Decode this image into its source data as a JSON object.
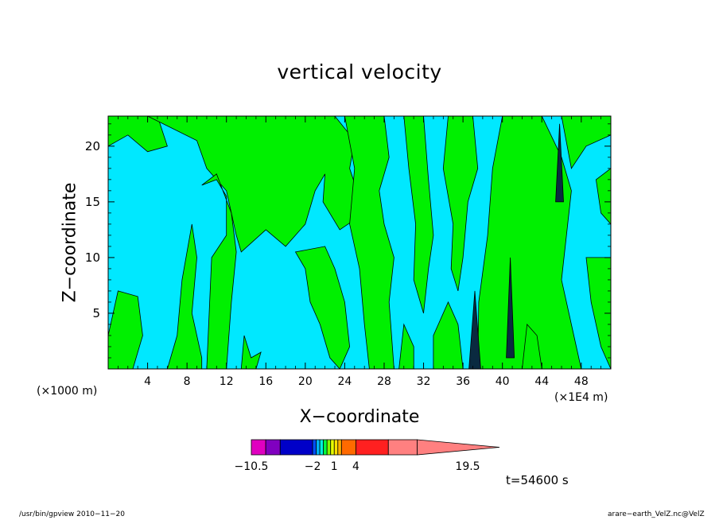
{
  "chart_data": {
    "type": "heatmap",
    "title": "vertical velocity",
    "xlabel": "X−coordinate",
    "ylabel": "Z−coordinate",
    "x_unit_left": "(×1000 m)",
    "x_unit_right": "(×1E4 m)",
    "x_ticks": [
      "4",
      "8",
      "12",
      "16",
      "20",
      "24",
      "28",
      "32",
      "36",
      "40",
      "44",
      "48"
    ],
    "x_tick_values": [
      4,
      8,
      12,
      16,
      20,
      24,
      28,
      32,
      36,
      40,
      44,
      48
    ],
    "xlim": [
      0,
      51
    ],
    "y_ticks": [
      "5",
      "10",
      "15",
      "20"
    ],
    "y_tick_values": [
      5,
      10,
      15,
      20
    ],
    "ylim": [
      0,
      22.7
    ],
    "colorbar": {
      "labels": [
        "−10.5",
        "−2",
        "1",
        "4",
        "19.5"
      ],
      "label_values": [
        -10.5,
        -2,
        1,
        4,
        19.5
      ],
      "levels": [
        -10.5,
        -8.5,
        -6.5,
        -2,
        -1.5,
        -1,
        -0.5,
        0,
        0.5,
        1,
        1.5,
        2,
        4,
        8.5,
        12.5,
        19.5
      ],
      "colors": [
        "#e000c0",
        "#8000c0",
        "#0000c8",
        "#0050ff",
        "#00b4ff",
        "#00f0e0",
        "#00ff40",
        "#80ff00",
        "#e8ff00",
        "#ffe000",
        "#ffb000",
        "#ff6a00",
        "#ff2020",
        "#ff8080",
        "#ffb4b4"
      ]
    },
    "field_colors": {
      "weak_negative": "#00e8ff",
      "weak_positive": "#00f000",
      "contour": "#000000"
    },
    "time_label": "t=54600 s"
  },
  "footer": {
    "left": "/usr/bin/gpview   2010−11−20",
    "right": "arare−earth_VelZ.nc@VelZ"
  }
}
